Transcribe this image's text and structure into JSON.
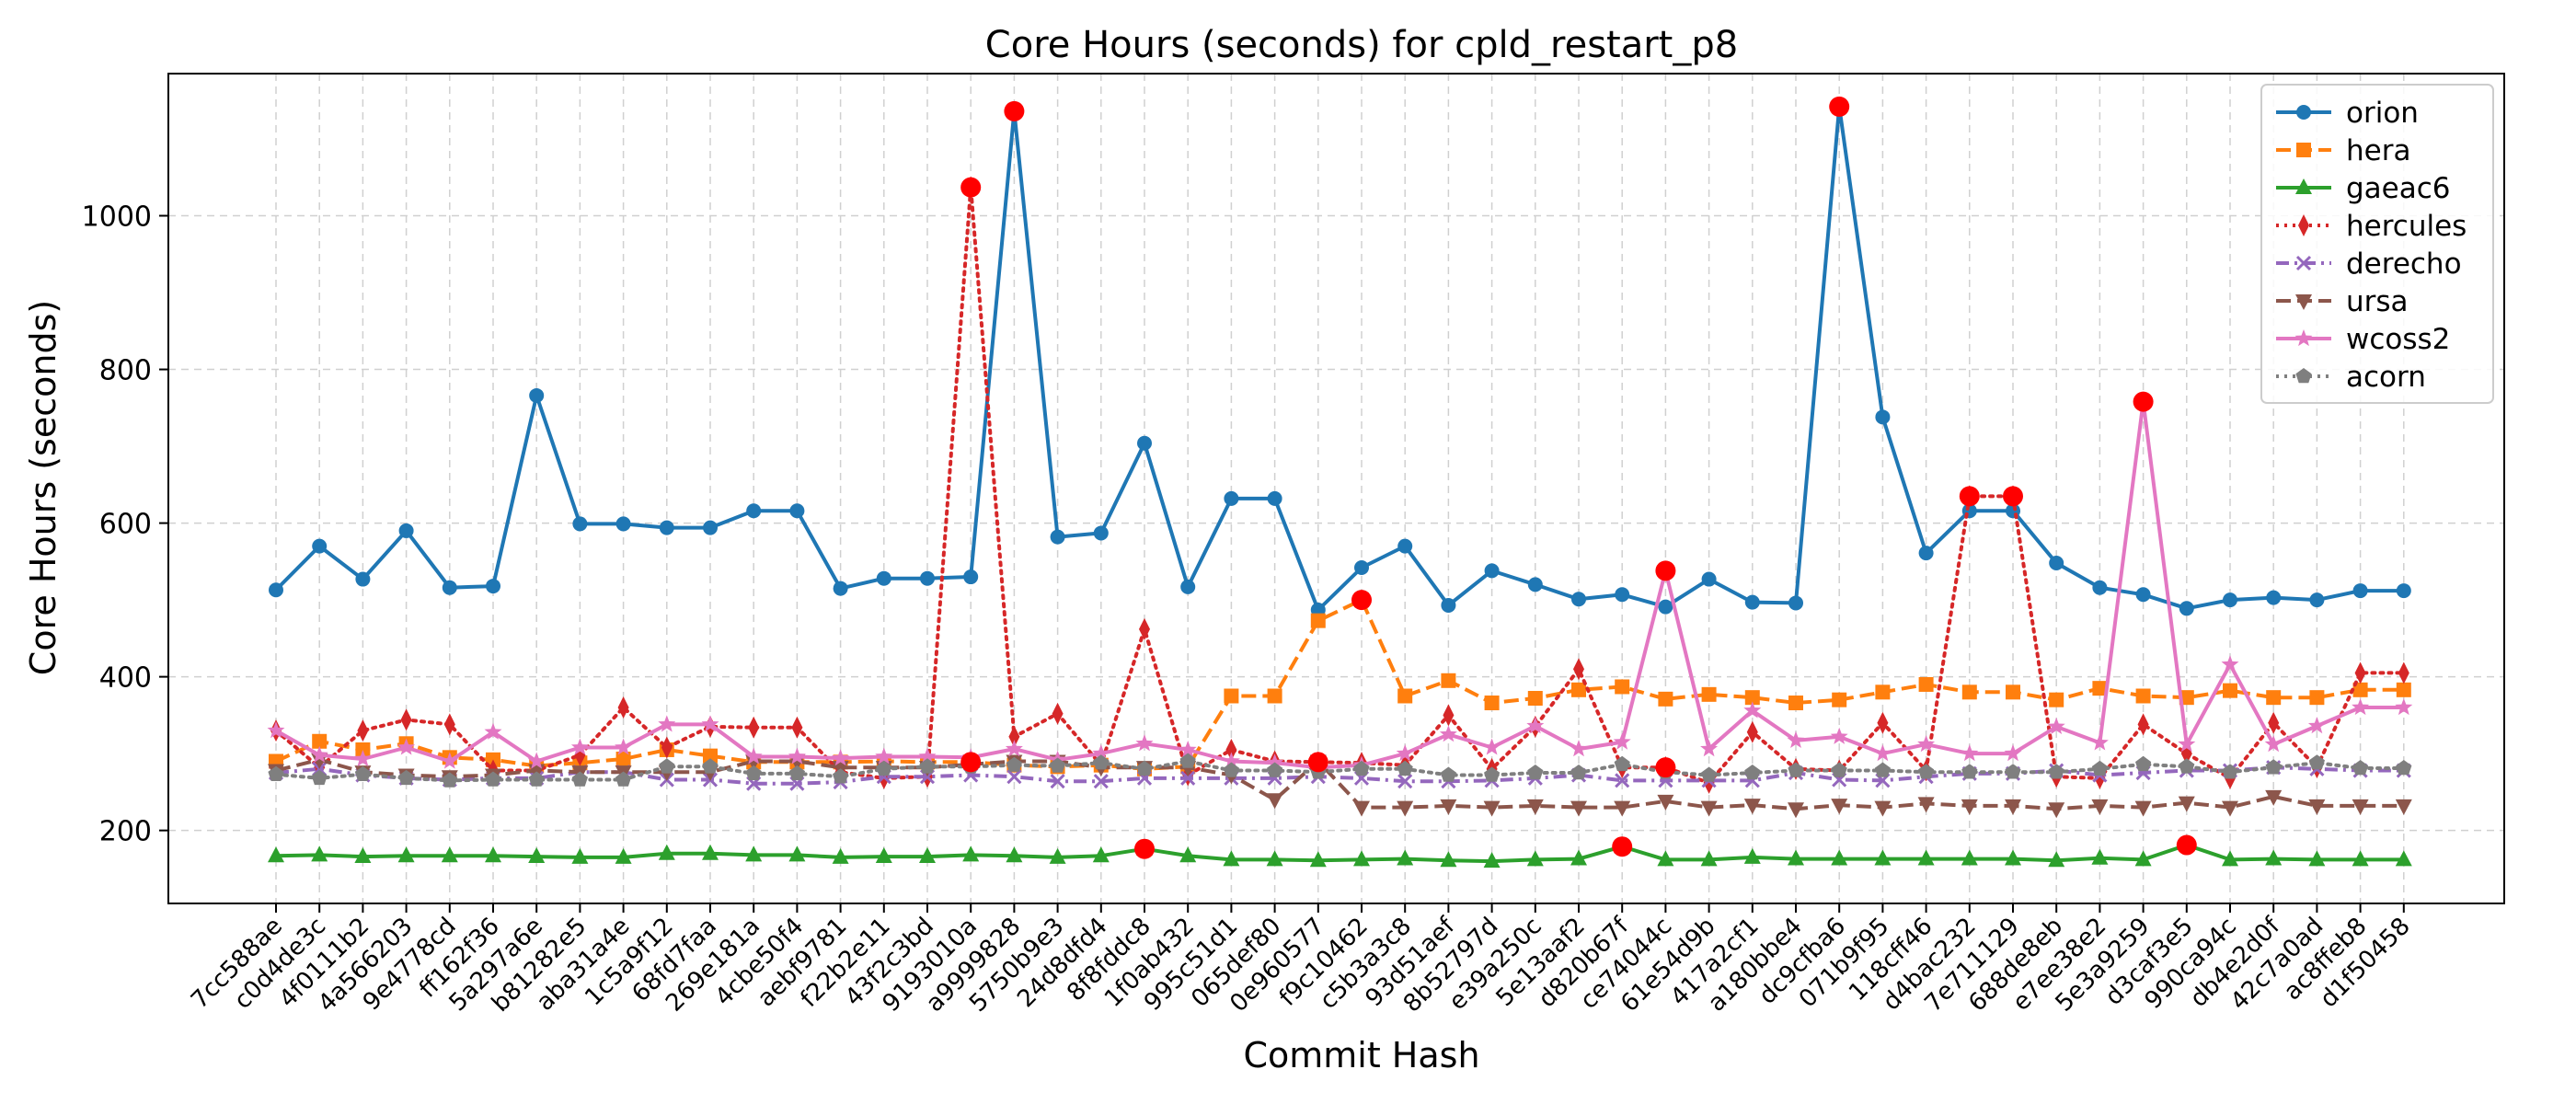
{
  "chart_data": {
    "type": "line",
    "title": "Core Hours (seconds) for cpld_restart_p8",
    "xlabel": "Commit Hash",
    "ylabel": "Core Hours (seconds)",
    "ylim": [
      105,
      1185
    ],
    "yticks": [
      200,
      400,
      600,
      800,
      1000
    ],
    "grid": true,
    "legend_position": "top-right",
    "categories": [
      "7cc588ae",
      "c0d4de3c",
      "4f0111b2",
      "4a566203",
      "9e4778cd",
      "ff162f36",
      "5a297a6e",
      "b81282e5",
      "aba31a4e",
      "1c5a9f12",
      "68fd7faa",
      "269e181a",
      "4cbe50f4",
      "aebf9781",
      "f22b2e11",
      "43f2c3bd",
      "9193010a",
      "a9999828",
      "5750b9e3",
      "24d8dfd4",
      "8f8fddc8",
      "1f0ab432",
      "995c51d1",
      "065def80",
      "0e960577",
      "f9c10462",
      "c5b3a3c8",
      "93d51aef",
      "8b52797d",
      "e39a250c",
      "5e13aaf2",
      "d820b67f",
      "ce74044c",
      "61e54d9b",
      "417a2cf1",
      "a180bbe4",
      "dc9cfba6",
      "071b9f95",
      "118cff46",
      "d4bac232",
      "7e711129",
      "688de8eb",
      "e7ee38e2",
      "5e3a9259",
      "d3caf3e5",
      "990ca94c",
      "db4e2d0f",
      "42c7a0ad",
      "ac8ffeb8",
      "d1f50458"
    ],
    "series": [
      {
        "name": "orion",
        "color": "#1f77b4",
        "linestyle": "solid",
        "marker": "circle",
        "values": [
          513,
          570,
          527,
          590,
          516,
          518,
          766,
          599,
          599,
          594,
          594,
          616,
          616,
          515,
          528,
          528,
          530,
          1136,
          582,
          587,
          704,
          517,
          632,
          632,
          487,
          542,
          570,
          493,
          538,
          520,
          501,
          507,
          491,
          527,
          497,
          496,
          1142,
          738,
          561,
          616,
          616,
          548,
          516,
          507,
          489,
          500,
          503,
          500,
          512,
          512
        ]
      },
      {
        "name": "hera",
        "color": "#ff7f0e",
        "linestyle": "dashed",
        "marker": "square",
        "values": [
          290,
          316,
          305,
          313,
          295,
          292,
          284,
          288,
          293,
          305,
          297,
          289,
          289,
          289,
          290,
          289,
          289,
          285,
          283,
          285,
          280,
          283,
          375,
          375,
          473,
          500,
          375,
          395,
          366,
          372,
          383,
          387,
          371,
          377,
          373,
          366,
          370,
          380,
          390,
          380,
          380,
          370,
          385,
          375,
          373,
          382,
          373,
          373,
          383,
          383
        ]
      },
      {
        "name": "gaeac6",
        "color": "#2ca02c",
        "linestyle": "solid",
        "marker": "triangle-up",
        "values": [
          167,
          168,
          166,
          167,
          167,
          167,
          166,
          165,
          165,
          170,
          170,
          168,
          168,
          165,
          166,
          166,
          168,
          167,
          165,
          167,
          176,
          167,
          162,
          162,
          161,
          162,
          163,
          161,
          160,
          162,
          163,
          179,
          162,
          162,
          165,
          163,
          163,
          163,
          163,
          163,
          163,
          161,
          164,
          162,
          181,
          162,
          163,
          162,
          162,
          162
        ]
      },
      {
        "name": "hercules",
        "color": "#d62728",
        "linestyle": "dotted",
        "marker": "thin-diamond",
        "values": [
          330,
          282,
          330,
          344,
          338,
          278,
          278,
          298,
          360,
          308,
          335,
          334,
          334,
          276,
          268,
          270,
          1037,
          322,
          352,
          285,
          462,
          272,
          305,
          290,
          289,
          288,
          285,
          350,
          280,
          335,
          410,
          282,
          282,
          262,
          328,
          280,
          278,
          340,
          278,
          635,
          635,
          270,
          268,
          338,
          300,
          268,
          340,
          282,
          405,
          405
        ]
      },
      {
        "name": "derecho",
        "color": "#9467bd",
        "linestyle": "dashdot",
        "marker": "x",
        "values": [
          275,
          280,
          272,
          268,
          266,
          268,
          268,
          276,
          276,
          266,
          266,
          261,
          261,
          263,
          270,
          270,
          272,
          270,
          264,
          264,
          268,
          268,
          268,
          268,
          270,
          268,
          264,
          264,
          265,
          268,
          272,
          265,
          265,
          265,
          265,
          275,
          266,
          265,
          270,
          274,
          274,
          278,
          272,
          275,
          278,
          278,
          282,
          280,
          278,
          278
        ]
      },
      {
        "name": "ursa",
        "color": "#8c564b",
        "linestyle": "dashed",
        "marker": "triangle-down",
        "values": [
          278,
          292,
          276,
          272,
          270,
          272,
          278,
          276,
          276,
          276,
          276,
          290,
          290,
          282,
          282,
          282,
          286,
          290,
          290,
          282,
          282,
          282,
          272,
          240,
          290,
          230,
          230,
          232,
          230,
          232,
          230,
          230,
          238,
          230,
          233,
          228,
          233,
          230,
          235,
          232,
          232,
          228,
          232,
          230,
          236,
          230,
          244,
          232,
          232,
          232
        ]
      },
      {
        "name": "wcoss2",
        "color": "#e377c2",
        "linestyle": "solid",
        "marker": "star",
        "values": [
          330,
          298,
          293,
          308,
          290,
          328,
          290,
          308,
          308,
          338,
          338,
          296,
          296,
          294,
          296,
          296,
          295,
          306,
          292,
          300,
          313,
          305,
          290,
          288,
          282,
          285,
          300,
          325,
          308,
          336,
          306,
          315,
          538,
          306,
          356,
          317,
          322,
          300,
          312,
          300,
          300,
          335,
          314,
          758,
          312,
          416,
          312,
          336,
          360,
          360
        ]
      },
      {
        "name": "acorn",
        "color": "#7f7f7f",
        "linestyle": "dotted",
        "marker": "pentagon",
        "values": [
          273,
          268,
          273,
          268,
          265,
          266,
          266,
          266,
          266,
          283,
          283,
          274,
          274,
          270,
          280,
          283,
          283,
          285,
          284,
          288,
          280,
          290,
          278,
          278,
          276,
          280,
          280,
          272,
          272,
          275,
          275,
          286,
          276,
          272,
          275,
          278,
          278,
          278,
          276,
          276,
          276,
          276,
          280,
          286,
          283,
          276,
          282,
          288,
          281,
          281
        ]
      }
    ],
    "highlight_color": "#ff0000",
    "highlights": [
      {
        "series": "orion",
        "index": 17
      },
      {
        "series": "orion",
        "index": 36
      },
      {
        "series": "hercules",
        "index": 16
      },
      {
        "series": "hercules",
        "index": 39
      },
      {
        "series": "hercules",
        "index": 40
      },
      {
        "series": "hera",
        "index": 25
      },
      {
        "series": "wcoss2",
        "index": 32
      },
      {
        "series": "wcoss2",
        "index": 43
      },
      {
        "series": "gaeac6",
        "index": 20
      },
      {
        "series": "gaeac6",
        "index": 31
      },
      {
        "series": "gaeac6",
        "index": 44
      },
      {
        "series": "hera",
        "index": 16
      },
      {
        "series": "hercules",
        "index": 24
      },
      {
        "series": "hercules",
        "index": 32
      }
    ]
  }
}
